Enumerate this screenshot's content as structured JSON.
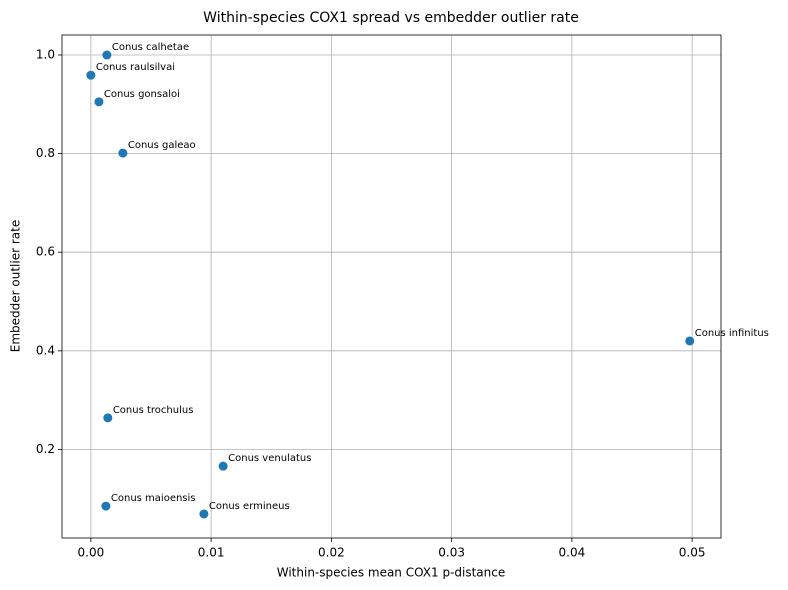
{
  "chart_data": {
    "type": "scatter",
    "title": "Within-species COX1 spread vs embedder outlier rate",
    "x_label": "Within-species mean COX1 p-distance",
    "y_label": "Embedder outlier rate",
    "color": "#1f77b4",
    "grid": true,
    "xlim": [
      -0.0024,
      0.0524
    ],
    "ylim": [
      0.0203,
      1.0406
    ],
    "xticks": [
      {
        "value": 0,
        "label": "0.00"
      },
      {
        "value": 0.01,
        "label": "0.01"
      },
      {
        "value": 0.02,
        "label": "0.02"
      },
      {
        "value": 0.03,
        "label": "0.03"
      },
      {
        "value": 0.04,
        "label": "0.04"
      },
      {
        "value": 0.05,
        "label": "0.05"
      }
    ],
    "yticks": [
      0.2,
      0.4,
      0.6,
      0.8,
      {
        "value": 1.0,
        "label": "1.0"
      }
    ],
    "point_labels": [
      "Conus calhetae",
      "Conus raulsilvai",
      "Conus gonsaloi",
      "Conus galeao",
      "Conus infinitus",
      "Conus trochulus",
      "Conus venulatus",
      "Conus maioensis",
      "Conus ermineus"
    ],
    "x": [
      0.00133,
      0.0,
      0.00067,
      0.00266,
      0.0498,
      0.00141,
      0.011,
      0.00125,
      0.0094
    ],
    "values": [
      1.0,
      0.959,
      0.905,
      0.801,
      0.42,
      0.264,
      0.166,
      0.085,
      0.069
    ]
  }
}
